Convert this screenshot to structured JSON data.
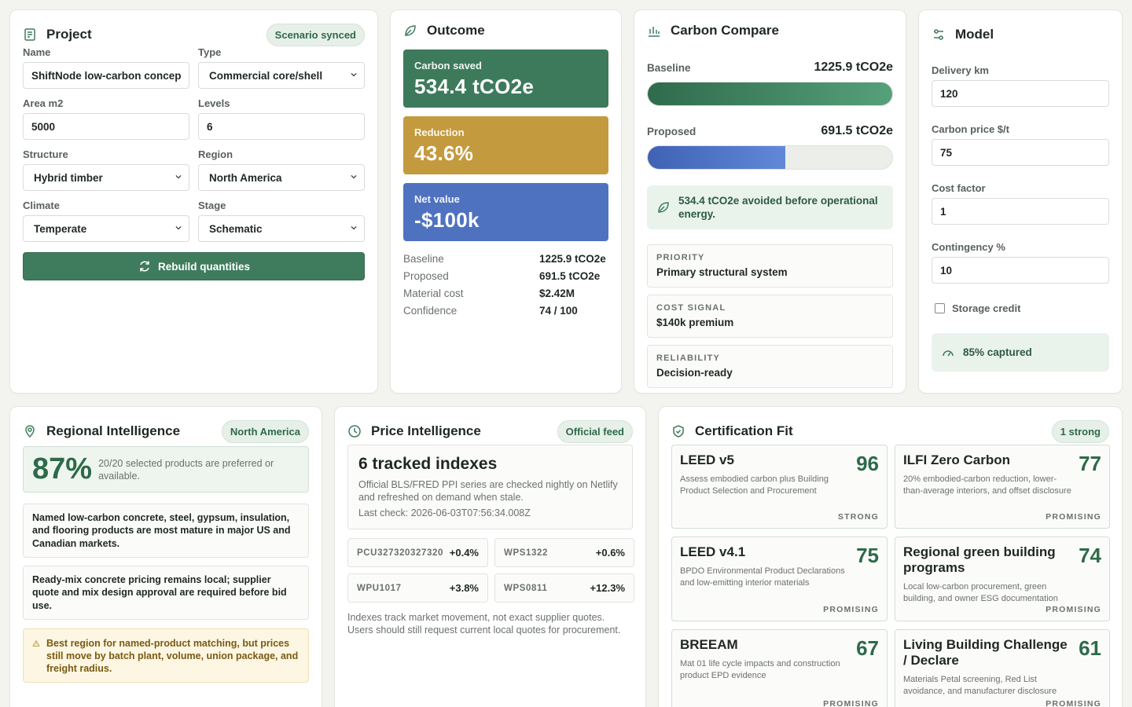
{
  "project": {
    "title": "Project",
    "badge": "Scenario synced",
    "fields": [
      {
        "label": "Name",
        "value": "ShiftNode low-carbon concep"
      },
      {
        "label": "Type",
        "value": "Commercial core/shell"
      },
      {
        "label": "Area m2",
        "value": "5000"
      },
      {
        "label": "Levels",
        "value": "6"
      },
      {
        "label": "Structure",
        "value": "Hybrid timber"
      },
      {
        "label": "Region",
        "value": "North America"
      },
      {
        "label": "Climate",
        "value": "Temperate"
      },
      {
        "label": "Stage",
        "value": "Schematic"
      }
    ],
    "button": "Rebuild quantities"
  },
  "outcome": {
    "title": "Outcome",
    "tiles": [
      {
        "label": "Carbon saved",
        "value": "534.4 tCO2e"
      },
      {
        "label": "Reduction",
        "value": "43.6%"
      },
      {
        "label": "Net value",
        "value": "-$100k"
      }
    ],
    "rows": [
      {
        "label": "Baseline",
        "value": "1225.9 tCO2e"
      },
      {
        "label": "Proposed",
        "value": "691.5 tCO2e"
      },
      {
        "label": "Material cost",
        "value": "$2.42M"
      },
      {
        "label": "Confidence",
        "value": "74 / 100"
      }
    ]
  },
  "carbon_compare": {
    "title": "Carbon Compare",
    "bars": [
      {
        "label": "Baseline",
        "value": 1225.9,
        "value_label": "1225.9 tCO2e"
      },
      {
        "label": "Proposed",
        "value": 691.5,
        "value_label": "691.5 tCO2e"
      }
    ],
    "note": "534.4 tCO2e avoided before operational energy.",
    "cards": [
      {
        "label": "PRIORITY",
        "value": "Primary structural system"
      },
      {
        "label": "COST SIGNAL",
        "value": "$140k premium"
      },
      {
        "label": "RELIABILITY",
        "value": "Decision-ready"
      }
    ]
  },
  "model": {
    "title": "Model",
    "fields": [
      {
        "label": "Delivery km",
        "value": "120"
      },
      {
        "label": "Carbon price $/t",
        "value": "75"
      },
      {
        "label": "Cost factor",
        "value": "1"
      },
      {
        "label": "Contingency %",
        "value": "10"
      }
    ],
    "checkbox": "Storage credit",
    "captured": "85% captured"
  },
  "regional": {
    "title": "Regional Intelligence",
    "badge": "North America",
    "score": "87%",
    "score_text": "20/20 selected products are preferred or available.",
    "notes": [
      "Named low-carbon concrete, steel, gypsum, insulation, and flooring products are most mature in major US and Canadian markets.",
      "Ready-mix concrete pricing remains local; supplier quote and mix design approval are required before bid use."
    ],
    "warning": "Best region for named-product matching, but prices still move by batch plant, volume, union package, and freight radius."
  },
  "price": {
    "title": "Price Intelligence",
    "badge": "Official feed",
    "headline": "6 tracked indexes",
    "description": "Official BLS/FRED PPI series are checked nightly on Netlify and refreshed on demand when stale.",
    "last_check": "Last check: 2026-06-03T07:56:34.008Z",
    "indexes": [
      {
        "code": "PCU327320327320",
        "change": "+0.4%"
      },
      {
        "code": "WPS1322",
        "change": "+0.6%"
      },
      {
        "code": "WPU1017",
        "change": "+3.8%"
      },
      {
        "code": "WPS0811",
        "change": "+12.3%"
      }
    ],
    "footer": "Indexes track market movement, not exact supplier quotes. Users should still request current local quotes for procurement."
  },
  "certification": {
    "title": "Certification Fit",
    "badge": "1 strong",
    "items": [
      {
        "name": "LEED v5",
        "score": "96",
        "description": "Assess embodied carbon plus Building Product Selection and Procurement",
        "status": "STRONG"
      },
      {
        "name": "ILFI Zero Carbon",
        "score": "77",
        "description": "20% embodied-carbon reduction, lower-than-average interiors, and offset disclosure",
        "status": "PROMISING"
      },
      {
        "name": "LEED v4.1",
        "score": "75",
        "description": "BPDO Environmental Product Declarations and low-emitting interior materials",
        "status": "PROMISING"
      },
      {
        "name": "Regional green building programs",
        "score": "74",
        "description": "Local low-carbon procurement, green building, and owner ESG documentation",
        "status": "PROMISING"
      },
      {
        "name": "BREEAM",
        "score": "67",
        "description": "Mat 01 life cycle impacts and construction product EPD evidence",
        "status": "PROMISING"
      },
      {
        "name": "Living Building Challenge / Declare",
        "score": "61",
        "description": "Materials Petal screening, Red List avoidance, and manufacturer disclosure",
        "status": "PROMISING"
      }
    ]
  }
}
